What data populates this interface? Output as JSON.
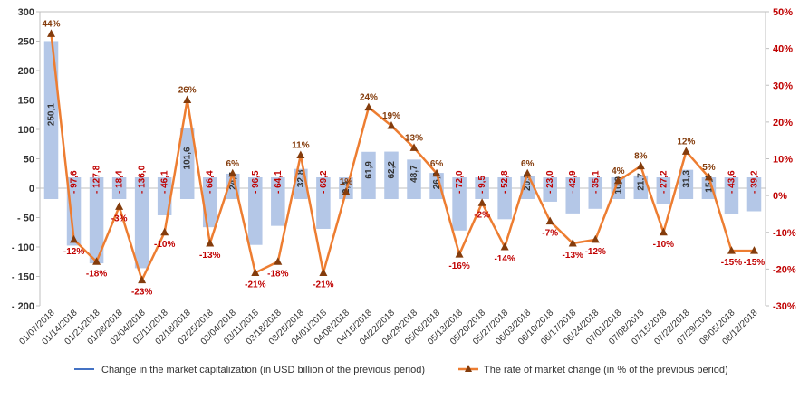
{
  "chart_data": {
    "type": "bar+line",
    "categories": [
      "01/07/2018",
      "01/14/2018",
      "01/21/2018",
      "01/28/2018",
      "02/04/2018",
      "02/11/2018",
      "02/18/2018",
      "02/25/2018",
      "03/04/2018",
      "03/11/2018",
      "03/18/2018",
      "03/25/2018",
      "04/01/2018",
      "04/08/2018",
      "04/15/2018",
      "04/22/2018",
      "04/29/2018",
      "05/06/2018",
      "05/13/2018",
      "05/20/2018",
      "05/27/2018",
      "06/03/2018",
      "06/10/2018",
      "06/17/2018",
      "06/24/2018",
      "07/01/2018",
      "07/08/2018",
      "07/15/2018",
      "07/22/2018",
      "07/29/2018",
      "08/05/2018",
      "08/12/2018"
    ],
    "bar_series": {
      "name": "Change in the market capitalization  (in USD billion of the previous period)",
      "values": [
        250.1,
        -97.6,
        -127.8,
        -18.4,
        -136.0,
        -46.1,
        101.6,
        -66.4,
        24.7,
        -96.5,
        -64.1,
        32.8,
        -69.2,
        2.4,
        61.9,
        62.2,
        48.7,
        26.0,
        -72.0,
        -9.5,
        -52.8,
        20.8,
        -23.0,
        -42.9,
        -35.1,
        10.0,
        21.7,
        -27.2,
        31.3,
        15.4,
        -43.6,
        -39.2
      ],
      "labels": [
        "250,1",
        "- 97,6",
        "- 127,8",
        "- 18,4",
        "- 136,0",
        "- 46,1",
        "101,6",
        "- 66,4",
        "24,7",
        "- 96,5",
        "- 64,1",
        "32,8",
        "- 69,2",
        "2,4",
        "61,9",
        "62,2",
        "48,7",
        "26,0",
        "- 72,0",
        "- 9,5",
        "- 52,8",
        "20,8",
        "- 23,0",
        "- 42,9",
        "- 35,1",
        "10,0",
        "21,7",
        "- 27,2",
        "31,3",
        "15,4",
        "- 43,6",
        "- 39,2"
      ],
      "color": "#b4c7e7"
    },
    "line_series": {
      "name": "The rate of market change (in % of the previous period)",
      "values": [
        44,
        -12,
        -18,
        -3,
        -23,
        -10,
        26,
        -13,
        6,
        -21,
        -18,
        11,
        -21,
        1,
        24,
        19,
        13,
        6,
        -16,
        -2,
        -14,
        6,
        -7,
        -13,
        -12,
        4,
        8,
        -10,
        12,
        5,
        -15,
        -15
      ],
      "labels": [
        "44%",
        "-12%",
        "-18%",
        "-3%",
        "-23%",
        "-10%",
        "26%",
        "-13%",
        "6%",
        "-21%",
        "-18%",
        "11%",
        "-21%",
        "1%",
        "24%",
        "19%",
        "13%",
        "6%",
        "-16%",
        "-2%",
        "-14%",
        "6%",
        "-7%",
        "-13%",
        "-12%",
        "4%",
        "8%",
        "-10%",
        "12%",
        "5%",
        "-15%",
        "-15%"
      ],
      "color": "#ed7d31",
      "marker_color": "#843c0c"
    },
    "y_left": {
      "min": -200,
      "max": 300,
      "step": 50,
      "ticks": [
        "300",
        "250",
        "200",
        "150",
        "100",
        "50",
        "0",
        "- 50",
        "- 100",
        "- 150",
        "- 200"
      ]
    },
    "y_right": {
      "min": -30,
      "max": 50,
      "step": 10,
      "ticks": [
        "50%",
        "40%",
        "30%",
        "20%",
        "10%",
        "0%",
        "-10%",
        "-20%",
        "-30%"
      ]
    },
    "legend_placement": "bottom",
    "grid": false
  },
  "legend": {
    "bar_label": "Change in the market capitalization  (in USD billion of the previous period)",
    "line_label": "The rate of market change (in % of the previous period)"
  }
}
